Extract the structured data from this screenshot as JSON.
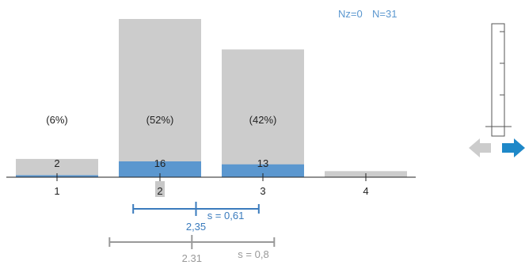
{
  "header": {
    "nz_text": "Nz=0",
    "n_text": "N=31"
  },
  "colors": {
    "bar_background": "#cccccc",
    "bar_fill": "#5b97cf",
    "current_stats": "#3a7bbd",
    "reference_stats": "#999999",
    "nav_next": "#1e88c8",
    "nav_prev": "#cccccc",
    "text": "#222222"
  },
  "chart_data": {
    "type": "bar",
    "categories": [
      "1",
      "2",
      "3",
      "4"
    ],
    "series": [
      {
        "values": [
          2,
          16,
          13,
          0
        ],
        "value_labels": [
          "2",
          "16",
          "13",
          ""
        ]
      }
    ],
    "background_values": [
      6,
      52,
      42,
      2
    ],
    "percent_labels": [
      "(6%)",
      "(52%)",
      "(42%)",
      ""
    ],
    "highlighted_category": "2",
    "xlim": [
      0.5,
      4.5
    ],
    "grid": false,
    "stats": {
      "current": {
        "mean": 2.35,
        "sd": 0.61,
        "mean_label": "2,35",
        "sd_label": "s = 0,61"
      },
      "reference": {
        "mean": 2.31,
        "sd": 0.8,
        "mean_label": "2.31",
        "sd_label": "s = 0,8"
      }
    }
  },
  "side_scale": {
    "ticks": 5
  },
  "nav": {
    "prev_icon": "arrow-left-icon",
    "next_icon": "arrow-right-icon"
  }
}
